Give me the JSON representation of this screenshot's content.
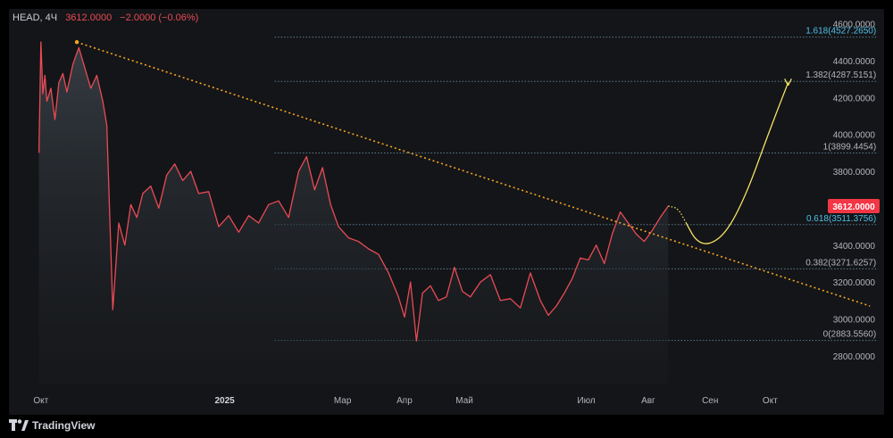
{
  "header": {
    "symbol": "HEAD, 4Ч",
    "last": "3612.0000",
    "change": "−2.0000 (−0.06%)"
  },
  "footer": {
    "brand": "TradingView"
  },
  "colors": {
    "price_line": "#e84b55",
    "trendline": "#f5a623",
    "fib_line": "#5b7d8f",
    "fib_label_blue": "#4ec0e9",
    "fib_label_gray": "#b2b5be",
    "projection": "#f5e463",
    "price_badge": "#f23645"
  },
  "chart_data": {
    "type": "line",
    "title": "",
    "xlabel": "",
    "ylabel": "",
    "ylim": [
      2650,
      4680
    ],
    "y_ticks": [
      "4600.0000",
      "4400.0000",
      "4200.0000",
      "4000.0000",
      "3800.0000",
      "3600.0000",
      "3400.0000",
      "3200.0000",
      "3000.0000",
      "2800.0000"
    ],
    "x_ticks": [
      "Окт",
      "2025",
      "Мар",
      "Апр",
      "Май",
      "Июл",
      "Авг",
      "Сен",
      "Окт"
    ],
    "series": [
      {
        "values": [
          [
            "2024-09-30",
            3900
          ],
          [
            "2024-10-01",
            4500
          ],
          [
            "2024-10-02",
            4220
          ],
          [
            "2024-10-03",
            4320
          ],
          [
            "2024-10-04",
            4180
          ],
          [
            "2024-10-06",
            4250
          ],
          [
            "2024-10-08",
            4080
          ],
          [
            "2024-10-10",
            4280
          ],
          [
            "2024-10-12",
            4330
          ],
          [
            "2024-10-14",
            4230
          ],
          [
            "2024-10-17",
            4380
          ],
          [
            "2024-10-20",
            4470
          ],
          [
            "2024-10-23",
            4360
          ],
          [
            "2024-10-26",
            4250
          ],
          [
            "2024-10-29",
            4320
          ],
          [
            "2024-11-01",
            4180
          ],
          [
            "2024-11-03",
            4050
          ],
          [
            "2024-11-06",
            3050
          ],
          [
            "2024-11-09",
            3520
          ],
          [
            "2024-11-12",
            3400
          ],
          [
            "2024-11-15",
            3620
          ],
          [
            "2024-11-18",
            3550
          ],
          [
            "2024-11-21",
            3680
          ],
          [
            "2024-11-25",
            3720
          ],
          [
            "2024-11-29",
            3600
          ],
          [
            "2024-12-03",
            3780
          ],
          [
            "2024-12-07",
            3840
          ],
          [
            "2024-12-11",
            3750
          ],
          [
            "2024-12-15",
            3800
          ],
          [
            "2024-12-19",
            3680
          ],
          [
            "2024-12-24",
            3690
          ],
          [
            "2024-12-29",
            3500
          ],
          [
            "2025-01-03",
            3560
          ],
          [
            "2025-01-08",
            3470
          ],
          [
            "2025-01-13",
            3560
          ],
          [
            "2025-01-18",
            3520
          ],
          [
            "2025-01-23",
            3620
          ],
          [
            "2025-01-28",
            3640
          ],
          [
            "2025-02-02",
            3550
          ],
          [
            "2025-02-07",
            3800
          ],
          [
            "2025-02-11",
            3880
          ],
          [
            "2025-02-15",
            3700
          ],
          [
            "2025-02-19",
            3820
          ],
          [
            "2025-02-23",
            3620
          ],
          [
            "2025-02-27",
            3500
          ],
          [
            "2025-03-04",
            3440
          ],
          [
            "2025-03-09",
            3420
          ],
          [
            "2025-03-14",
            3380
          ],
          [
            "2025-03-19",
            3350
          ],
          [
            "2025-03-24",
            3250
          ],
          [
            "2025-03-29",
            3120
          ],
          [
            "2025-04-01",
            3010
          ],
          [
            "2025-04-04",
            3200
          ],
          [
            "2025-04-07",
            2880
          ],
          [
            "2025-04-10",
            3140
          ],
          [
            "2025-04-14",
            3180
          ],
          [
            "2025-04-18",
            3100
          ],
          [
            "2025-04-22",
            3120
          ],
          [
            "2025-04-26",
            3280
          ],
          [
            "2025-04-30",
            3150
          ],
          [
            "2025-05-04",
            3120
          ],
          [
            "2025-05-09",
            3200
          ],
          [
            "2025-05-14",
            3240
          ],
          [
            "2025-05-19",
            3100
          ],
          [
            "2025-05-24",
            3110
          ],
          [
            "2025-05-29",
            3060
          ],
          [
            "2025-06-03",
            3250
          ],
          [
            "2025-06-08",
            3100
          ],
          [
            "2025-06-12",
            3020
          ],
          [
            "2025-06-16",
            3070
          ],
          [
            "2025-06-20",
            3140
          ],
          [
            "2025-06-24",
            3220
          ],
          [
            "2025-06-28",
            3330
          ],
          [
            "2025-07-02",
            3320
          ],
          [
            "2025-07-06",
            3400
          ],
          [
            "2025-07-10",
            3300
          ],
          [
            "2025-07-14",
            3460
          ],
          [
            "2025-07-18",
            3580
          ],
          [
            "2025-07-22",
            3520
          ],
          [
            "2025-07-26",
            3460
          ],
          [
            "2025-07-30",
            3420
          ],
          [
            "2025-08-03",
            3480
          ],
          [
            "2025-08-07",
            3550
          ],
          [
            "2025-08-11",
            3612
          ]
        ]
      }
    ],
    "trendline": {
      "from": [
        "2024-10-19",
        4500
      ],
      "to": [
        "2025-11-20",
        3070
      ]
    },
    "fibonacci": [
      {
        "label": "1.618(4527.2650)",
        "value": 4527.265,
        "highlight": true
      },
      {
        "label": "1.382(4287.5151)",
        "value": 4287.5151,
        "highlight": false
      },
      {
        "label": "1(3899.4454)",
        "value": 3899.4454,
        "highlight": false
      },
      {
        "label": "0.618(3511.3756)",
        "value": 3511.3756,
        "highlight": true
      },
      {
        "label": "0.382(3271.6257)",
        "value": 3271.6257,
        "highlight": false
      },
      {
        "label": "0(2883.5560)",
        "value": 2883.556,
        "highlight": false
      }
    ],
    "fib_start": "2025-01-26",
    "fib_end": "2025-11-24",
    "projection": [
      [
        "2025-08-11",
        3612
      ],
      [
        "2025-08-16",
        3600
      ],
      [
        "2025-08-20",
        3520
      ],
      [
        "2025-08-25",
        3420
      ],
      [
        "2025-09-01",
        3400
      ],
      [
        "2025-09-10",
        3480
      ],
      [
        "2025-09-20",
        3700
      ],
      [
        "2025-09-30",
        4000
      ],
      [
        "2025-10-10",
        4280
      ]
    ],
    "current_price": "3612.0000",
    "legend": "none",
    "grid": false
  }
}
